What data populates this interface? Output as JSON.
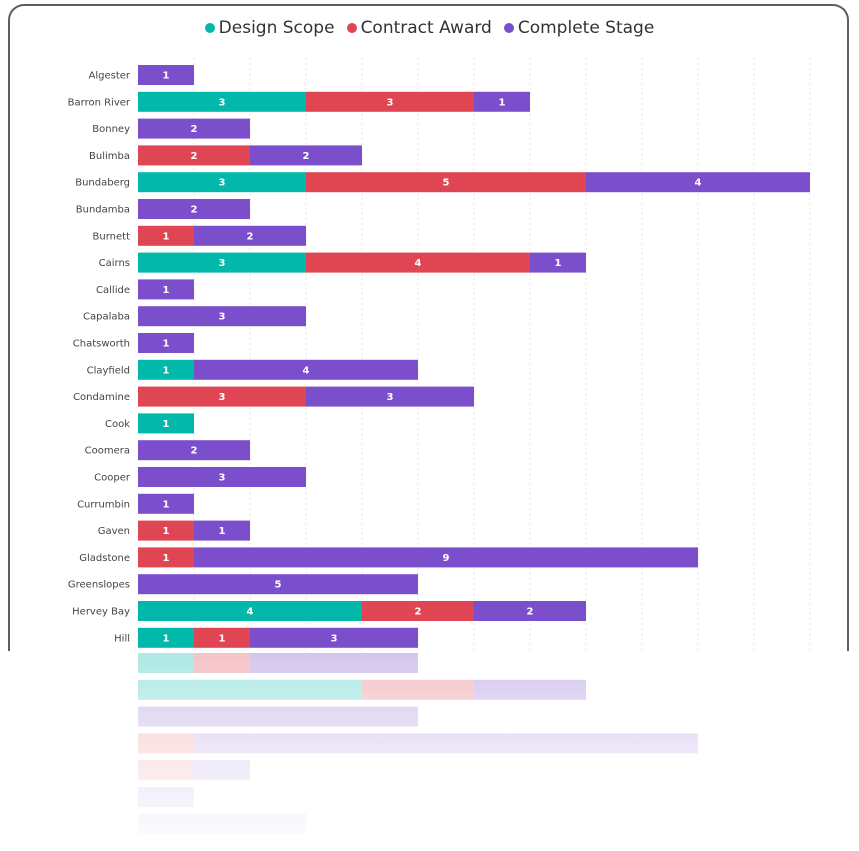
{
  "legend": {
    "items": [
      {
        "label": "Design Scope",
        "color": "#01b8aa"
      },
      {
        "label": "Contract Award",
        "color": "#e04553"
      },
      {
        "label": "Complete Stage",
        "color": "#7b4fcb"
      }
    ]
  },
  "chart_data": {
    "type": "bar",
    "orientation": "horizontal",
    "stacked": true,
    "grid": true,
    "legend_position": "top-center",
    "xlim": [
      0,
      12
    ],
    "categories": [
      "Algester",
      "Barron River",
      "Bonney",
      "Bulimba",
      "Bundaberg",
      "Bundamba",
      "Burnett",
      "Cairns",
      "Callide",
      "Capalaba",
      "Chatsworth",
      "Clayfield",
      "Condamine",
      "Cook",
      "Coomera",
      "Cooper",
      "Currumbin",
      "Gaven",
      "Gladstone",
      "Greenslopes",
      "Hervey Bay",
      "Hill"
    ],
    "series": [
      {
        "name": "Design Scope",
        "color": "#01b8aa",
        "values": [
          0,
          3,
          0,
          0,
          3,
          0,
          0,
          3,
          0,
          0,
          0,
          1,
          0,
          1,
          0,
          0,
          0,
          0,
          0,
          0,
          4,
          1
        ]
      },
      {
        "name": "Contract Award",
        "color": "#e04553",
        "values": [
          0,
          3,
          0,
          2,
          5,
          0,
          1,
          4,
          0,
          0,
          0,
          0,
          3,
          0,
          0,
          0,
          0,
          1,
          1,
          0,
          2,
          1
        ]
      },
      {
        "name": "Complete Stage",
        "color": "#7b4fcb",
        "values": [
          1,
          1,
          2,
          2,
          4,
          2,
          2,
          1,
          1,
          3,
          1,
          4,
          3,
          0,
          2,
          3,
          1,
          1,
          9,
          5,
          2,
          3
        ]
      }
    ]
  }
}
